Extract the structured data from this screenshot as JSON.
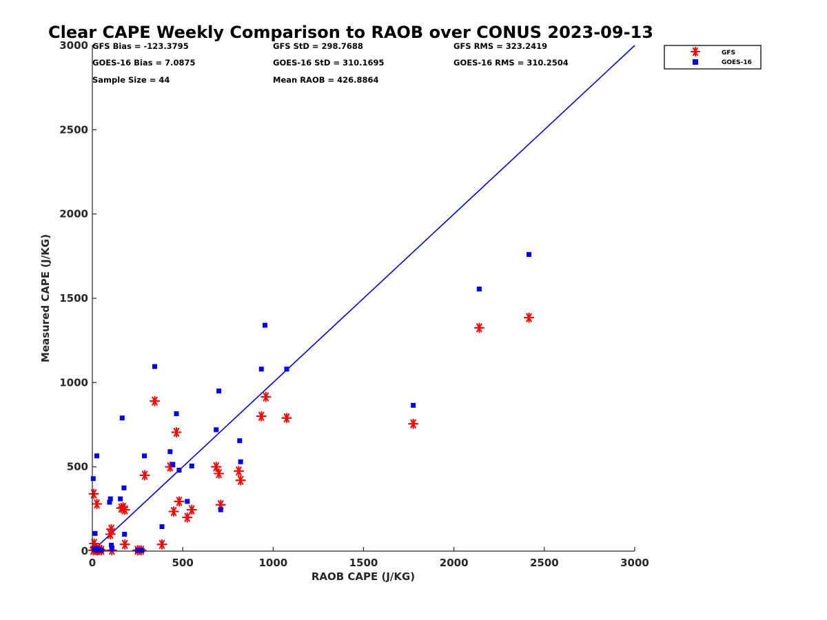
{
  "chart_data": {
    "type": "scatter",
    "title": "Clear CAPE Weekly Comparison to RAOB over CONUS 2023-09-13",
    "xlabel": "RAOB CAPE (J/KG)",
    "ylabel": "Measured CAPE (J/KG)",
    "xlim": [
      0,
      3000
    ],
    "ylim": [
      0,
      3000
    ],
    "xticks": [
      "0",
      "500",
      "1000",
      "1500",
      "2000",
      "2500",
      "3000"
    ],
    "yticks": [
      "0",
      "500",
      "1000",
      "1500",
      "2000",
      "2500",
      "3000"
    ],
    "grid": false,
    "legend_position": "top-right",
    "reference_line": {
      "from": [
        0,
        0
      ],
      "to": [
        3000,
        3000
      ],
      "color": "#0000dd"
    },
    "stats": [
      "GFS Bias = -123.3795",
      "GFS StD = 298.7688",
      "GFS RMS = 323.2419",
      "GOES-16 Bias = 7.0875",
      "GOES-16 StD = 310.1695",
      "GOES-16 RMS = 310.2504",
      "Sample Size = 44",
      "Mean RAOB = 426.8864"
    ],
    "series": [
      {
        "name": "GFS",
        "marker": "asterisk",
        "color": "#ff0000",
        "points": [
          [
            5,
            5
          ],
          [
            10,
            45
          ],
          [
            15,
            20
          ],
          [
            20,
            10
          ],
          [
            25,
            5
          ],
          [
            30,
            5
          ],
          [
            40,
            10
          ],
          [
            50,
            5
          ],
          [
            8,
            340
          ],
          [
            25,
            280
          ],
          [
            100,
            100
          ],
          [
            105,
            130
          ],
          [
            108,
            5
          ],
          [
            160,
            255
          ],
          [
            170,
            260
          ],
          [
            180,
            245
          ],
          [
            180,
            40
          ],
          [
            250,
            5
          ],
          [
            270,
            5
          ],
          [
            290,
            450
          ],
          [
            345,
            890
          ],
          [
            385,
            40
          ],
          [
            430,
            500
          ],
          [
            450,
            235
          ],
          [
            465,
            705
          ],
          [
            480,
            295
          ],
          [
            525,
            200
          ],
          [
            550,
            245
          ],
          [
            685,
            500
          ],
          [
            700,
            460
          ],
          [
            710,
            275
          ],
          [
            810,
            475
          ],
          [
            820,
            420
          ],
          [
            935,
            800
          ],
          [
            960,
            915
          ],
          [
            1075,
            790
          ],
          [
            1775,
            755
          ],
          [
            2140,
            1325
          ],
          [
            2415,
            1385
          ]
        ]
      },
      {
        "name": "GOES-16",
        "marker": "square",
        "color": "#0000ff",
        "points": [
          [
            5,
            430
          ],
          [
            10,
            10
          ],
          [
            15,
            105
          ],
          [
            20,
            15
          ],
          [
            25,
            565
          ],
          [
            30,
            5
          ],
          [
            40,
            10
          ],
          [
            50,
            5
          ],
          [
            95,
            290
          ],
          [
            100,
            310
          ],
          [
            105,
            35
          ],
          [
            108,
            15
          ],
          [
            155,
            310
          ],
          [
            165,
            790
          ],
          [
            175,
            375
          ],
          [
            178,
            100
          ],
          [
            250,
            5
          ],
          [
            275,
            5
          ],
          [
            288,
            565
          ],
          [
            345,
            1095
          ],
          [
            385,
            145
          ],
          [
            430,
            590
          ],
          [
            445,
            515
          ],
          [
            465,
            815
          ],
          [
            480,
            480
          ],
          [
            525,
            295
          ],
          [
            550,
            505
          ],
          [
            685,
            720
          ],
          [
            700,
            950
          ],
          [
            710,
            245
          ],
          [
            815,
            655
          ],
          [
            820,
            530
          ],
          [
            935,
            1080
          ],
          [
            955,
            1340
          ],
          [
            1075,
            1080
          ],
          [
            1775,
            865
          ],
          [
            2140,
            1555
          ],
          [
            2415,
            1760
          ]
        ]
      }
    ]
  }
}
